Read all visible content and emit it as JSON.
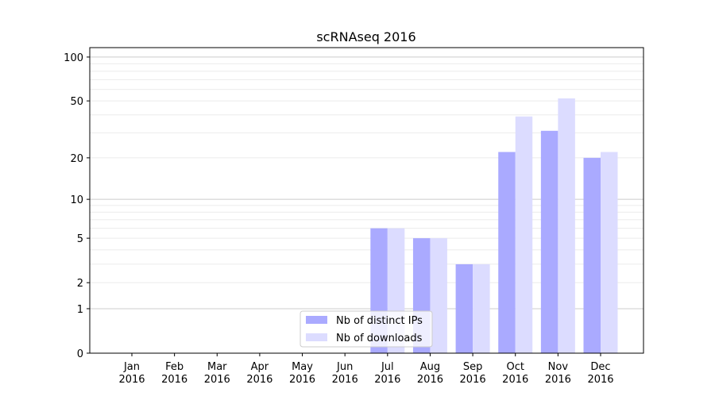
{
  "chart_data": {
    "type": "bar",
    "title": "scRNAseq 2016",
    "xlabel": "",
    "ylabel": "",
    "yscale": "symlog (log10(1+y))",
    "ylim": [
      0,
      116
    ],
    "yticks": [
      0,
      1,
      2,
      5,
      10,
      20,
      50,
      100
    ],
    "grid": true,
    "legend_position": "lower center",
    "categories": [
      "Jan\n2016",
      "Feb\n2016",
      "Mar\n2016",
      "Apr\n2016",
      "May\n2016",
      "Jun\n2016",
      "Jul\n2016",
      "Aug\n2016",
      "Sep\n2016",
      "Oct\n2016",
      "Nov\n2016",
      "Dec\n2016"
    ],
    "series": [
      {
        "name": "Nb of distinct IPs",
        "color": "#aaaaff",
        "values": [
          0,
          0,
          0,
          0,
          0,
          0,
          6,
          5,
          3,
          22,
          31,
          20
        ]
      },
      {
        "name": "Nb of downloads",
        "color": "#dcdcff",
        "values": [
          0,
          0,
          0,
          0,
          0,
          0,
          6,
          5,
          3,
          39,
          52,
          22
        ]
      }
    ]
  }
}
